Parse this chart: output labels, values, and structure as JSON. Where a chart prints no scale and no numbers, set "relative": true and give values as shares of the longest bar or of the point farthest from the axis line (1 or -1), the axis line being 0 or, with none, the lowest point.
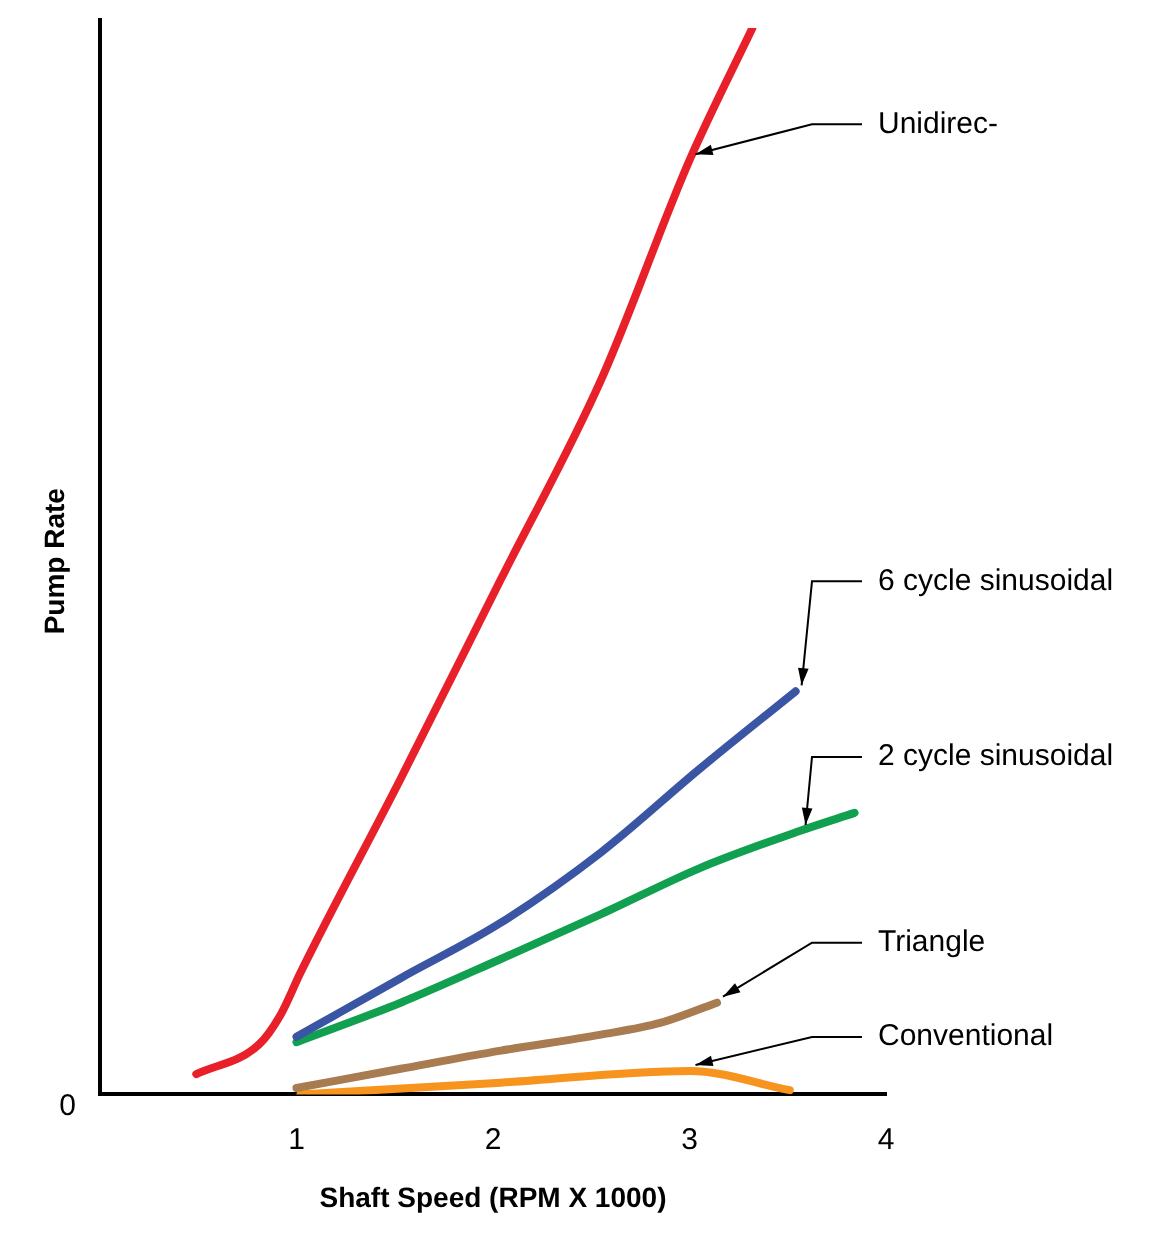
{
  "chart_data": {
    "type": "line",
    "relative": true,
    "xlabel": "Shaft Speed (RPM X 1000)",
    "ylabel": "Pump Rate",
    "xlim": [
      0,
      4
    ],
    "xticks": [
      1,
      2,
      3,
      4
    ],
    "legend": false,
    "grid": false,
    "marker": "none",
    "line_style": "solid",
    "annotations": [
      "0"
    ],
    "series": [
      {
        "name": "Unidirec-",
        "color": "#e8202a",
        "x": [
          0.49,
          0.81,
          0.92,
          1.02,
          1.53,
          2.04,
          2.55,
          3.0,
          3.32
        ],
        "values": [
          0.019,
          0.047,
          0.075,
          0.114,
          0.296,
          0.483,
          0.67,
          0.876,
          1.0
        ]
      },
      {
        "name": "6 cycle sinusoidal",
        "color": "#3a55a4",
        "x": [
          1.0,
          1.53,
          2.04,
          2.55,
          3.05,
          3.54
        ],
        "values": [
          0.054,
          0.109,
          0.161,
          0.227,
          0.305,
          0.378
        ]
      },
      {
        "name": "2 cycle sinusoidal",
        "color": "#10a050",
        "x": [
          1.0,
          1.53,
          2.04,
          2.55,
          3.05,
          3.56,
          3.84
        ],
        "values": [
          0.049,
          0.086,
          0.127,
          0.169,
          0.212,
          0.247,
          0.264
        ]
      },
      {
        "name": "Triangle",
        "color": "#a87c50",
        "x": [
          1.0,
          1.53,
          2.04,
          2.55,
          2.85,
          3.14
        ],
        "values": [
          0.006,
          0.024,
          0.041,
          0.056,
          0.067,
          0.086
        ]
      },
      {
        "name": "Conventional",
        "color": "#f7941d",
        "x": [
          1.02,
          2.04,
          3.0,
          3.51
        ],
        "values": [
          0.0,
          0.011,
          0.022,
          0.004
        ]
      }
    ]
  }
}
